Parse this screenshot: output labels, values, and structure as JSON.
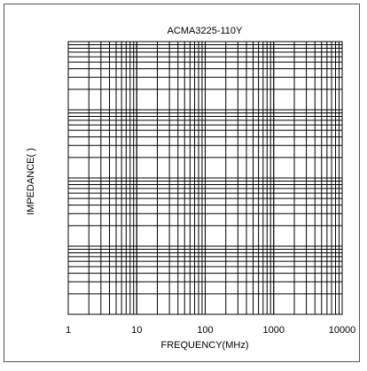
{
  "chart_data": {
    "type": "line",
    "title": "ACMA3225-110Y",
    "xlabel": "FREQUENCY(MHz)",
    "ylabel": "IMPEDANCE( )",
    "x_scale": "log",
    "xlim": [
      1,
      10000
    ],
    "x_tick_labels": [
      "1",
      "10",
      "100",
      "1000",
      "10000"
    ],
    "grid": true,
    "series": []
  }
}
